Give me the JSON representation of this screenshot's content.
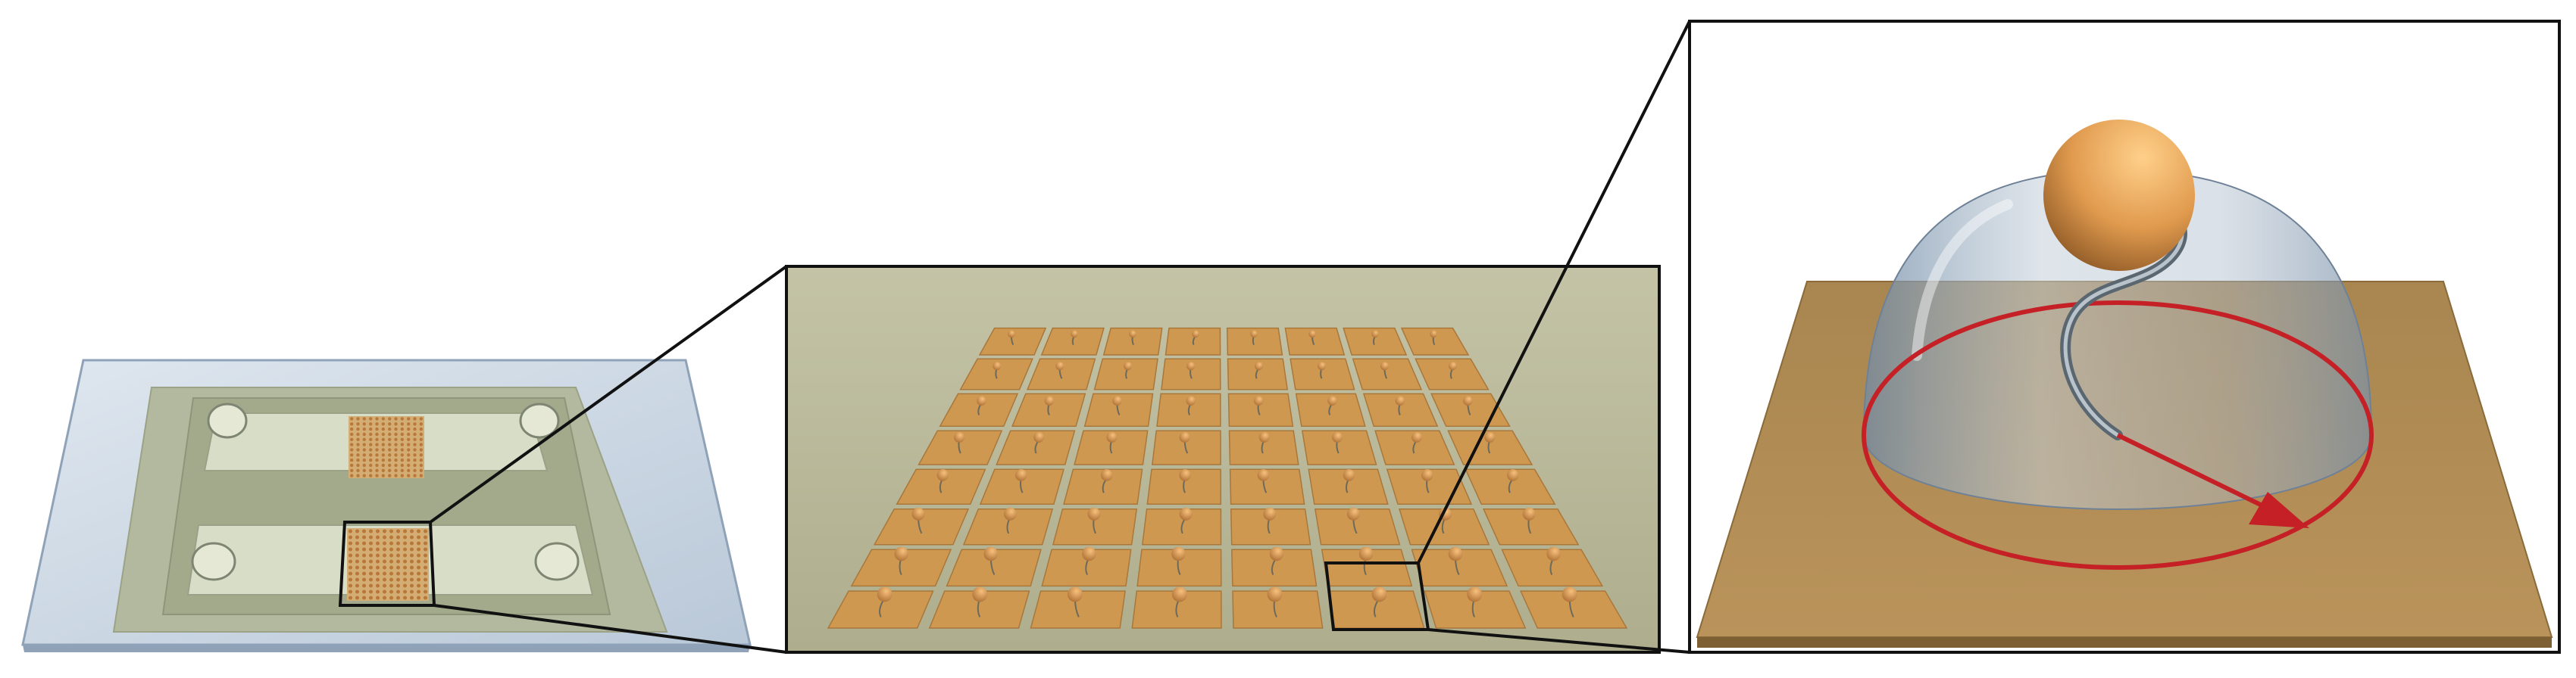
{
  "figure": {
    "panels": [
      {
        "name": "microfluidic-chip",
        "view": "overview",
        "sensor_array": {
          "rows": 12,
          "cols": 12
        }
      },
      {
        "name": "sensor-array",
        "view": "zoom",
        "grid": {
          "rows": 8,
          "cols": 8
        }
      },
      {
        "name": "single-sensor",
        "view": "zoom",
        "parts": [
          "sphere",
          "hemisphere",
          "flexible-wire",
          "deflection-arrow",
          "deflection-circle",
          "base-pad"
        ]
      }
    ],
    "colors": {
      "glass": "#c9d6e4",
      "glass_edge": "#8fa2b8",
      "chip_layer": "#b3b99e",
      "channel": "#d6dcc4",
      "array_bg": "#b6b595",
      "pad": "#cf9850",
      "pad_dark": "#a9773a",
      "base_plate": "#b18b52",
      "base_plate_edge": "#876637",
      "sphere": "#e6a45a",
      "sphere_dark": "#b8783a",
      "dome": "#9aabb9",
      "wire": "#7c8892",
      "arrow_red": "#c42026",
      "frame": "#111111"
    }
  }
}
